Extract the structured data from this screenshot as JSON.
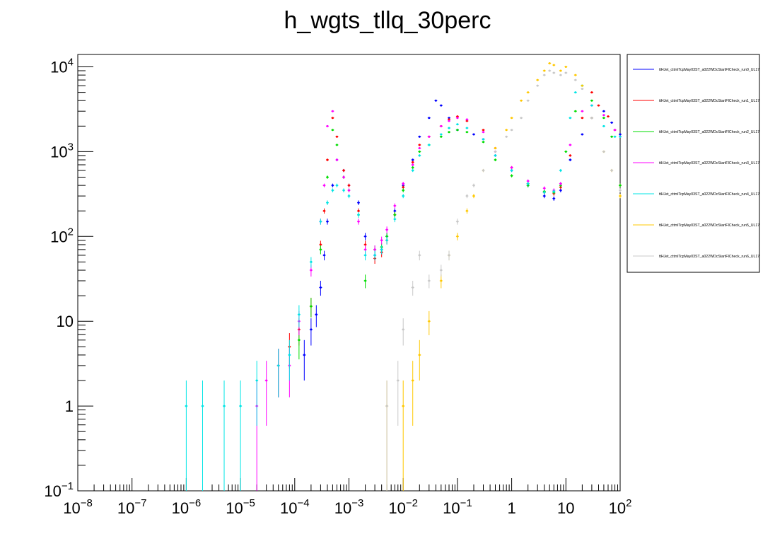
{
  "chart_data": {
    "type": "scatter",
    "title": "h_wgts_tllq_30perc",
    "xlabel": "",
    "ylabel": "",
    "x_scale": "log",
    "y_scale": "log",
    "xlim": [
      1e-08,
      100
    ],
    "ylim": [
      0.1,
      14000
    ],
    "grid": false,
    "legend_position": "right",
    "x_tick_labels": [
      {
        "value": 1e-08,
        "base": "10",
        "exp": "−8"
      },
      {
        "value": 1e-07,
        "base": "10",
        "exp": "−7"
      },
      {
        "value": 1e-06,
        "base": "10",
        "exp": "−6"
      },
      {
        "value": 1e-05,
        "base": "10",
        "exp": "−5"
      },
      {
        "value": 0.0001,
        "base": "10",
        "exp": "−4"
      },
      {
        "value": 0.001,
        "base": "10",
        "exp": "−3"
      },
      {
        "value": 0.01,
        "base": "10",
        "exp": "−2"
      },
      {
        "value": 0.1,
        "base": "10",
        "exp": "−1"
      },
      {
        "value": 1,
        "base": "1",
        "exp": ""
      },
      {
        "value": 10,
        "base": "10",
        "exp": ""
      },
      {
        "value": 100,
        "base": "10",
        "exp": "2"
      }
    ],
    "y_tick_labels": [
      {
        "value": 0.1,
        "base": "10",
        "exp": "−1"
      },
      {
        "value": 1,
        "base": "1",
        "exp": ""
      },
      {
        "value": 10,
        "base": "10",
        "exp": ""
      },
      {
        "value": 100,
        "base": "10",
        "exp": "2"
      },
      {
        "value": 1000,
        "base": "10",
        "exp": "3"
      },
      {
        "value": 10000,
        "base": "10",
        "exp": "4"
      }
    ],
    "series": [
      {
        "name": "ttHJet_cttmlTcpMay03ST_a022WDcStartFICheck_run0_UL17",
        "color": "#0000ff",
        "points": [
          [
            0.00015,
            4
          ],
          [
            0.0002,
            8
          ],
          [
            0.00025,
            12
          ],
          [
            0.0003,
            25
          ],
          [
            0.00035,
            60
          ],
          [
            0.0004,
            150
          ],
          [
            0.0005,
            400
          ],
          [
            0.0006,
            800
          ],
          [
            0.0008,
            600
          ],
          [
            0.001,
            400
          ],
          [
            0.0015,
            250
          ],
          [
            0.002,
            100
          ],
          [
            0.003,
            60
          ],
          [
            0.004,
            70
          ],
          [
            0.005,
            100
          ],
          [
            0.007,
            200
          ],
          [
            0.01,
            400
          ],
          [
            0.015,
            800
          ],
          [
            0.02,
            1500
          ],
          [
            0.03,
            2500
          ],
          [
            0.04,
            4000
          ],
          [
            0.05,
            3500
          ],
          [
            0.07,
            2500
          ],
          [
            0.1,
            1800
          ],
          [
            0.2,
            1600
          ],
          [
            0.3,
            1400
          ],
          [
            0.5,
            900
          ],
          [
            1,
            600
          ],
          [
            2,
            400
          ],
          [
            4,
            300
          ],
          [
            6,
            280
          ],
          [
            8,
            350
          ],
          [
            12,
            800
          ],
          [
            20,
            1600
          ],
          [
            30,
            2500
          ],
          [
            50,
            3000
          ],
          [
            70,
            2200
          ],
          [
            100,
            1600
          ]
        ]
      },
      {
        "name": "ttHJet_cttmlTcpMay03ST_a022WDcStartFICheck_run1_UL17",
        "color": "#ff0000",
        "points": [
          [
            5e-05,
            3
          ],
          [
            8e-05,
            5
          ],
          [
            0.00012,
            8
          ],
          [
            0.0002,
            15
          ],
          [
            0.0003,
            80
          ],
          [
            0.00035,
            200
          ],
          [
            0.0004,
            800
          ],
          [
            0.0005,
            2500
          ],
          [
            0.0006,
            1500
          ],
          [
            0.0008,
            600
          ],
          [
            0.001,
            400
          ],
          [
            0.0015,
            200
          ],
          [
            0.002,
            80
          ],
          [
            0.003,
            55
          ],
          [
            0.004,
            65
          ],
          [
            0.005,
            90
          ],
          [
            0.007,
            180
          ],
          [
            0.01,
            380
          ],
          [
            0.015,
            750
          ],
          [
            0.02,
            1200
          ],
          [
            0.03,
            1500
          ],
          [
            0.05,
            2000
          ],
          [
            0.07,
            2400
          ],
          [
            0.1,
            2600
          ],
          [
            0.15,
            2300
          ],
          [
            0.3,
            1800
          ],
          [
            0.5,
            1100
          ],
          [
            1,
            650
          ],
          [
            2,
            420
          ],
          [
            4,
            330
          ],
          [
            6,
            320
          ],
          [
            8,
            380
          ],
          [
            12,
            900
          ],
          [
            20,
            2500
          ],
          [
            30,
            5000
          ],
          [
            40,
            3500
          ],
          [
            60,
            2600
          ],
          [
            80,
            1800
          ],
          [
            100,
            400
          ]
        ]
      },
      {
        "name": "ttHJet_cttmlTcpMay03ST_a022WDcStartFICheck_run2_UL17",
        "color": "#00dd00",
        "points": [
          [
            0.00012,
            6
          ],
          [
            0.0002,
            15
          ],
          [
            0.0003,
            70
          ],
          [
            0.0004,
            500
          ],
          [
            0.0005,
            1800
          ],
          [
            0.0006,
            1200
          ],
          [
            0.0008,
            500
          ],
          [
            0.001,
            350
          ],
          [
            0.0015,
            180
          ],
          [
            0.002,
            30
          ],
          [
            0.003,
            70
          ],
          [
            0.004,
            75
          ],
          [
            0.005,
            100
          ],
          [
            0.007,
            180
          ],
          [
            0.01,
            350
          ],
          [
            0.015,
            650
          ],
          [
            0.02,
            1000
          ],
          [
            0.03,
            1200
          ],
          [
            0.05,
            1500
          ],
          [
            0.07,
            1700
          ],
          [
            0.1,
            1800
          ],
          [
            0.15,
            1700
          ],
          [
            0.3,
            1300
          ],
          [
            0.5,
            800
          ],
          [
            1,
            520
          ],
          [
            2,
            400
          ],
          [
            4,
            340
          ],
          [
            6,
            330
          ],
          [
            8,
            400
          ],
          [
            10,
            1000
          ],
          [
            15,
            3000
          ],
          [
            20,
            6000
          ],
          [
            30,
            4000
          ],
          [
            50,
            2500
          ],
          [
            70,
            1500
          ],
          [
            100,
            400
          ]
        ]
      },
      {
        "name": "ttHJet_cttmlTcpMay03ST_a022WDcStartFICheck_run3_UL17",
        "color": "#ff00ff",
        "points": [
          [
            2e-05,
            1
          ],
          [
            3e-05,
            2
          ],
          [
            5e-05,
            3
          ],
          [
            8e-05,
            3
          ],
          [
            0.00012,
            10
          ],
          [
            0.0002,
            40
          ],
          [
            0.0003,
            150
          ],
          [
            0.00035,
            400
          ],
          [
            0.0004,
            2000
          ],
          [
            0.0005,
            3000
          ],
          [
            0.0006,
            800
          ],
          [
            0.0008,
            500
          ],
          [
            0.001,
            350
          ],
          [
            0.0015,
            150
          ],
          [
            0.002,
            70
          ],
          [
            0.003,
            70
          ],
          [
            0.004,
            90
          ],
          [
            0.005,
            120
          ],
          [
            0.007,
            230
          ],
          [
            0.01,
            420
          ],
          [
            0.015,
            700
          ],
          [
            0.02,
            1100
          ],
          [
            0.03,
            1500
          ],
          [
            0.05,
            2000
          ],
          [
            0.07,
            2300
          ],
          [
            0.1,
            2500
          ],
          [
            0.15,
            2400
          ],
          [
            0.3,
            1700
          ],
          [
            0.5,
            1000
          ],
          [
            1,
            650
          ],
          [
            2,
            450
          ],
          [
            4,
            370
          ],
          [
            6,
            350
          ],
          [
            8,
            420
          ],
          [
            12,
            1200
          ],
          [
            20,
            3000
          ],
          [
            30,
            3500
          ],
          [
            50,
            2700
          ],
          [
            80,
            1800
          ],
          [
            100,
            1500
          ]
        ]
      },
      {
        "name": "ttHJet_cttmlTcpMay03ST_a022WDcStartFICheck_run4_UL17",
        "color": "#00e5e5",
        "points": [
          [
            1e-06,
            1
          ],
          [
            2e-06,
            1
          ],
          [
            5e-06,
            1
          ],
          [
            1e-05,
            1
          ],
          [
            2e-05,
            2
          ],
          [
            5e-05,
            3
          ],
          [
            8e-05,
            4
          ],
          [
            0.00012,
            12
          ],
          [
            0.0002,
            50
          ],
          [
            0.0003,
            150
          ],
          [
            0.0004,
            250
          ],
          [
            0.0005,
            350
          ],
          [
            0.0006,
            400
          ],
          [
            0.0008,
            350
          ],
          [
            0.001,
            300
          ],
          [
            0.0015,
            180
          ],
          [
            0.002,
            60
          ],
          [
            0.003,
            60
          ],
          [
            0.004,
            70
          ],
          [
            0.005,
            90
          ],
          [
            0.007,
            160
          ],
          [
            0.01,
            300
          ],
          [
            0.015,
            600
          ],
          [
            0.02,
            900
          ],
          [
            0.03,
            1200
          ],
          [
            0.05,
            1600
          ],
          [
            0.07,
            1900
          ],
          [
            0.1,
            2100
          ],
          [
            0.15,
            1900
          ],
          [
            0.3,
            1400
          ],
          [
            0.5,
            900
          ],
          [
            1,
            600
          ],
          [
            2,
            420
          ],
          [
            4,
            330
          ],
          [
            6,
            340
          ],
          [
            8,
            600
          ],
          [
            12,
            2500
          ],
          [
            15,
            5000
          ],
          [
            20,
            6000
          ],
          [
            30,
            3500
          ],
          [
            50,
            2000
          ],
          [
            80,
            1500
          ],
          [
            100,
            1500
          ]
        ]
      },
      {
        "name": "ttHJet_cttmlTcpMay03ST_a022WDcStartFICheck_run5_UL17",
        "color": "#ffc800",
        "points": [
          [
            0.005,
            1
          ],
          [
            0.01,
            1
          ],
          [
            0.015,
            2
          ],
          [
            0.02,
            4
          ],
          [
            0.03,
            10
          ],
          [
            0.05,
            30
          ],
          [
            0.07,
            60
          ],
          [
            0.1,
            100
          ],
          [
            0.15,
            200
          ],
          [
            0.2,
            300
          ],
          [
            0.3,
            600
          ],
          [
            0.5,
            1100
          ],
          [
            0.8,
            1800
          ],
          [
            1,
            2500
          ],
          [
            1.5,
            4000
          ],
          [
            2,
            5000
          ],
          [
            3,
            7000
          ],
          [
            4,
            9000
          ],
          [
            5,
            11000
          ],
          [
            6,
            10500
          ],
          [
            8,
            9000
          ],
          [
            10,
            10000
          ],
          [
            15,
            8000
          ],
          [
            20,
            6000
          ],
          [
            30,
            2500
          ],
          [
            50,
            1000
          ],
          [
            70,
            600
          ],
          [
            100,
            300
          ]
        ]
      },
      {
        "name": "ttHJet_cttmlTcpMay03ST_a022WDcStartFICheck_run6_UL17",
        "color": "#c8c8c8",
        "points": [
          [
            0.005,
            1
          ],
          [
            0.008,
            2
          ],
          [
            0.01,
            8
          ],
          [
            0.015,
            25
          ],
          [
            0.02,
            60
          ],
          [
            0.03,
            30
          ],
          [
            0.05,
            40
          ],
          [
            0.07,
            60
          ],
          [
            0.1,
            150
          ],
          [
            0.15,
            300
          ],
          [
            0.2,
            400
          ],
          [
            0.3,
            600
          ],
          [
            0.5,
            1000
          ],
          [
            0.8,
            1500
          ],
          [
            1,
            1800
          ],
          [
            1.5,
            2500
          ],
          [
            2,
            4000
          ],
          [
            3,
            6000
          ],
          [
            4,
            8000
          ],
          [
            5,
            9000
          ],
          [
            6,
            8500
          ],
          [
            8,
            8000
          ],
          [
            10,
            8500
          ],
          [
            15,
            7000
          ],
          [
            20,
            5500
          ],
          [
            30,
            2500
          ],
          [
            50,
            1000
          ],
          [
            70,
            600
          ],
          [
            100,
            350
          ]
        ]
      }
    ]
  }
}
